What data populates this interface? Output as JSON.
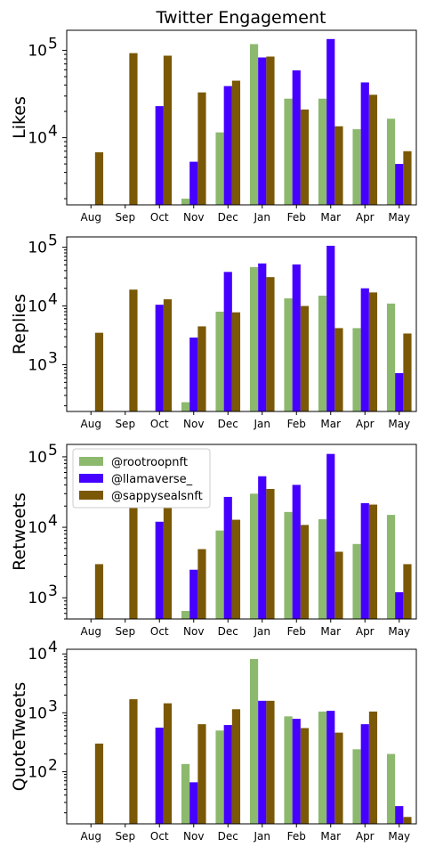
{
  "chart_data": {
    "type": "bar",
    "title": "Twitter Engagement",
    "categories": [
      "Aug",
      "Sep",
      "Oct",
      "Nov",
      "Dec",
      "Jan",
      "Feb",
      "Mar",
      "Apr",
      "May"
    ],
    "yscale": "log",
    "legend": {
      "placement": "top-left",
      "panel": "Retweets"
    },
    "series_meta": [
      {
        "name": "@rootroopnft",
        "color": "#8cb96e"
      },
      {
        "name": "@llamaverse_",
        "color": "#4500ff"
      },
      {
        "name": "@sappysealsnft",
        "color": "#7a5805"
      }
    ],
    "panels": [
      {
        "ylabel": "Likes",
        "ylim": [
          1700,
          170000
        ],
        "yticks": [
          {
            "value": 10000,
            "base": "10",
            "exp": "4"
          },
          {
            "value": 100000,
            "base": "10",
            "exp": "5"
          }
        ],
        "series": [
          {
            "name": "@rootroopnft",
            "values": [
              null,
              null,
              null,
              2000,
              11500,
              118000,
              28000,
              28000,
              12500,
              16500
            ]
          },
          {
            "name": "@llamaverse_",
            "values": [
              null,
              null,
              23000,
              5300,
              39000,
              83000,
              59000,
              135000,
              43000,
              5000
            ]
          },
          {
            "name": "@sappysealsnft",
            "values": [
              6800,
              93000,
              87000,
              33000,
              45000,
              85000,
              21000,
              13500,
              31000,
              7000
            ]
          }
        ]
      },
      {
        "ylabel": "Replies",
        "ylim": [
          160,
          150000
        ],
        "yticks": [
          {
            "value": 1000,
            "base": "10",
            "exp": "3"
          },
          {
            "value": 10000,
            "base": "10",
            "exp": "4"
          },
          {
            "value": 100000,
            "base": "10",
            "exp": "5"
          }
        ],
        "series": [
          {
            "name": "@rootroopnft",
            "values": [
              null,
              null,
              null,
              230,
              8000,
              46000,
              13500,
              15000,
              4200,
              11000
            ]
          },
          {
            "name": "@llamaverse_",
            "values": [
              null,
              null,
              10500,
              2900,
              38000,
              53000,
              51000,
              106000,
              20000,
              720
            ]
          },
          {
            "name": "@sappysealsnft",
            "values": [
              3500,
              19000,
              13000,
              4500,
              7800,
              31000,
              10000,
              4200,
              17000,
              3400
            ]
          }
        ]
      },
      {
        "ylabel": "Retweets",
        "ylim": [
          500,
          150000
        ],
        "yticks": [
          {
            "value": 1000,
            "base": "10",
            "exp": "3"
          },
          {
            "value": 10000,
            "base": "10",
            "exp": "4"
          },
          {
            "value": 100000,
            "base": "10",
            "exp": "5"
          }
        ],
        "series": [
          {
            "name": "@rootroopnft",
            "values": [
              null,
              null,
              null,
              650,
              9000,
              30000,
              16500,
              13000,
              5800,
              15000
            ]
          },
          {
            "name": "@llamaverse_",
            "values": [
              null,
              null,
              12000,
              2500,
              27000,
              53000,
              40000,
              110000,
              22000,
              1200
            ]
          },
          {
            "name": "@sappysealsnft",
            "values": [
              3000,
              20000,
              20000,
              4900,
              12800,
              35000,
              10800,
              4500,
              21000,
              3000
            ]
          }
        ]
      },
      {
        "ylabel": "QuoteTweets",
        "ylim": [
          13,
          12000
        ],
        "yticks": [
          {
            "value": 100,
            "base": "10",
            "exp": "2"
          },
          {
            "value": 1000,
            "base": "10",
            "exp": "3"
          },
          {
            "value": 10000,
            "base": "10",
            "exp": "4"
          }
        ],
        "series": [
          {
            "name": "@rootroopnft",
            "values": [
              null,
              null,
              null,
              135,
              500,
              8200,
              870,
              1050,
              240,
              200
            ]
          },
          {
            "name": "@llamaverse_",
            "values": [
              null,
              null,
              560,
              66,
              620,
              1600,
              790,
              1080,
              640,
              26
            ]
          },
          {
            "name": "@sappysealsnft",
            "values": [
              300,
              1700,
              1450,
              640,
              1150,
              1600,
              550,
              460,
              1050,
              17
            ]
          }
        ]
      }
    ]
  }
}
